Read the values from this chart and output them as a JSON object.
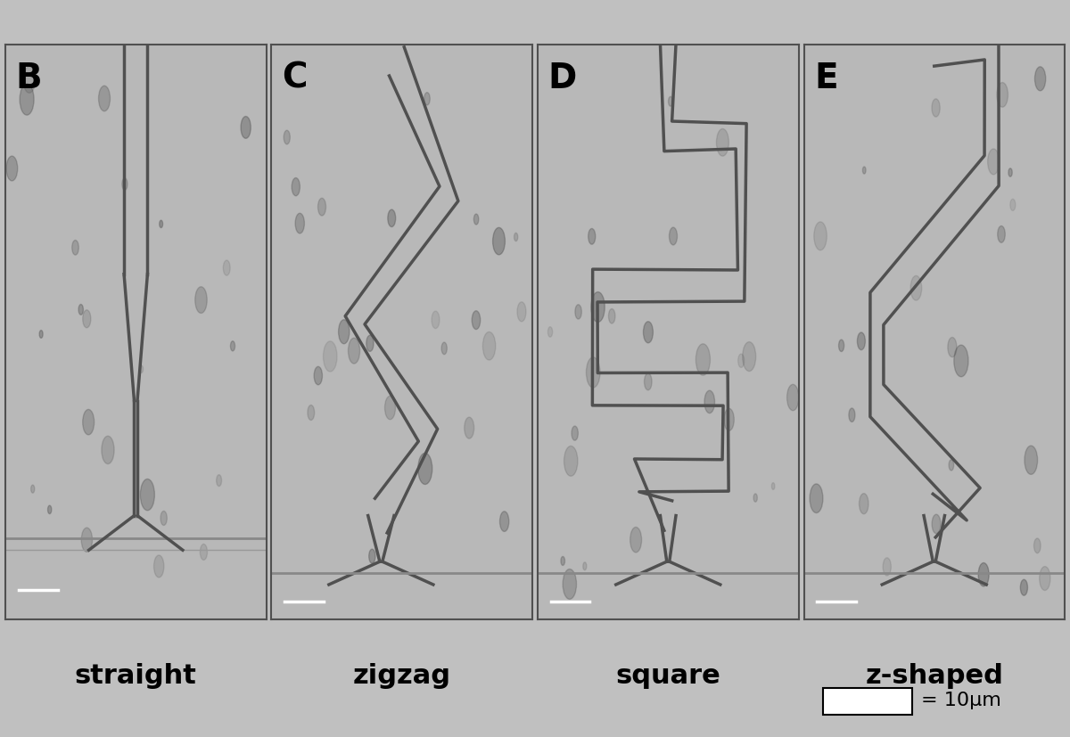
{
  "panel_labels": [
    "B",
    "C",
    "D",
    "E"
  ],
  "panel_captions": [
    "straight",
    "zigzag",
    "square",
    "z-shaped"
  ],
  "channel_color": "#505050",
  "channel_linewidth": 2.5,
  "label_fontsize": 28,
  "caption_fontsize": 22,
  "scale_text": "= 10μm",
  "n_panels": 4,
  "figsize": [
    12.0,
    8.27
  ],
  "dpi": 100,
  "panel_bg": "#b8b8b8",
  "figure_bg": "#c0c0c0",
  "spot_color": "#404040",
  "bottom_bar_color": "#888888",
  "scale_bar_color": "white"
}
